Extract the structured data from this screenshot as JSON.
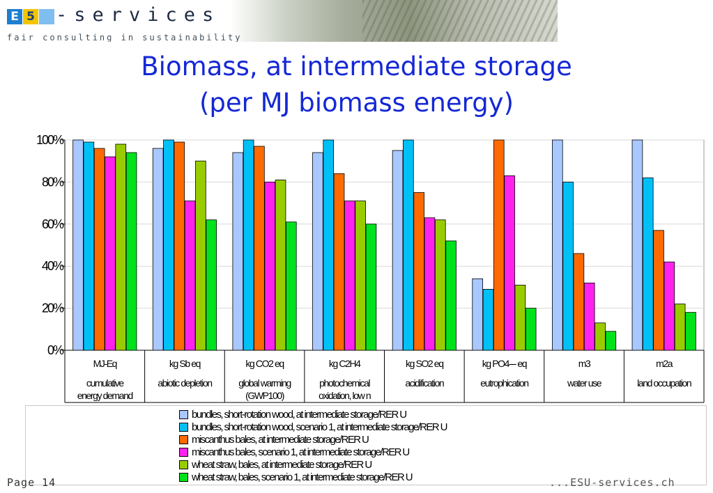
{
  "header": {
    "logo_letters": [
      "E",
      "5",
      ""
    ],
    "logo_word": "-services",
    "tagline": "fair consulting in sustainability"
  },
  "title_lines": [
    "Biomass, at intermediate storage",
    "(per MJ biomass energy)"
  ],
  "footer": {
    "left": "Page 14",
    "right": "...ESU-services.ch"
  },
  "colors": {
    "series": [
      "#a8c8ff",
      "#00c0f6",
      "#ff6a00",
      "#ff22ee",
      "#99cc00",
      "#00e21c"
    ],
    "title": "#1428d6"
  },
  "chart_data": {
    "type": "bar",
    "ylim": [
      0,
      100
    ],
    "yticks": [
      "0%",
      "20%",
      "40%",
      "60%",
      "80%",
      "100%"
    ],
    "categories": [
      {
        "unit": "MJ-Eq",
        "name": [
          "cumulative",
          "energy demand"
        ]
      },
      {
        "unit": "kg Sb eq",
        "name": [
          "abiotic depletion"
        ]
      },
      {
        "unit": "kg CO2 eq",
        "name": [
          "global warming",
          "(GWP100)"
        ]
      },
      {
        "unit": "kg C2H4",
        "name": [
          "photochemical",
          "oxidation, low n"
        ]
      },
      {
        "unit": "kg SO2 eq",
        "name": [
          "acidification"
        ]
      },
      {
        "unit": "kg PO4--- eq",
        "name": [
          "eutrophication"
        ]
      },
      {
        "unit": "m3",
        "name": [
          "water use"
        ]
      },
      {
        "unit": "m2a",
        "name": [
          "land occupation"
        ]
      }
    ],
    "series": [
      {
        "name": "bundles, short-rotation wood, at intermediate storage/RER U",
        "values": [
          100,
          96,
          94,
          94,
          95,
          34,
          100,
          100
        ]
      },
      {
        "name": "bundles, short-rotation wood, scenario 1, at intermediate storage/RER U",
        "values": [
          99,
          100,
          100,
          100,
          100,
          29,
          80,
          82
        ]
      },
      {
        "name": "miscanthus bales, at intermediate storage/RER U",
        "values": [
          96,
          99,
          97,
          84,
          75,
          100,
          46,
          57
        ]
      },
      {
        "name": "miscanthus bales, scenario 1, at intermediate storage/RER U",
        "values": [
          92,
          71,
          80,
          71,
          63,
          83,
          32,
          42
        ]
      },
      {
        "name": "wheat straw, bales, at intermediate storage/RER U",
        "values": [
          98,
          90,
          81,
          71,
          62,
          31,
          13,
          22
        ]
      },
      {
        "name": "wheat straw, bales, scenario 1, at intermediate storage/RER U",
        "values": [
          94,
          62,
          61,
          60,
          52,
          20,
          9,
          18
        ]
      }
    ]
  }
}
